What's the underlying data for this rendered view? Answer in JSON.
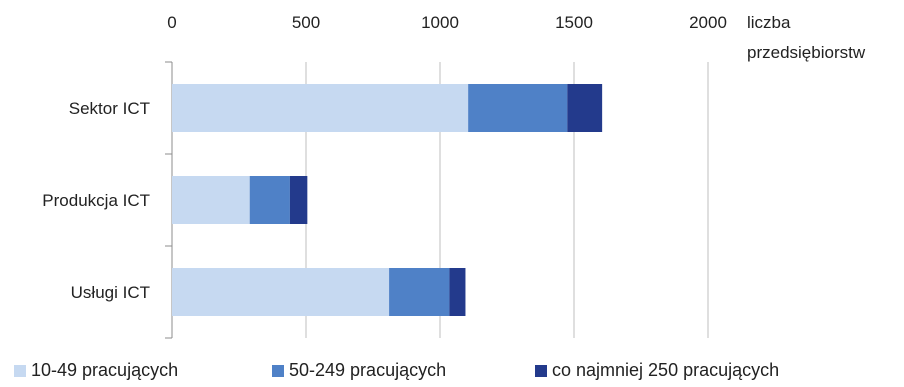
{
  "chart_data": {
    "type": "bar",
    "orientation": "horizontal",
    "stacked": true,
    "categories": [
      "Sektor ICT",
      "Produkcja ICT",
      "Usługi ICT"
    ],
    "series": [
      {
        "name": "10-49 pracujących",
        "values": [
          1105,
          290,
          810
        ],
        "color": "#c6d9f1"
      },
      {
        "name": "50-249 pracujących",
        "values": [
          370,
          150,
          225
        ],
        "color": "#4f81c7"
      },
      {
        "name": "co najmniej 250 pracujących",
        "values": [
          130,
          65,
          60
        ],
        "color": "#233a8c"
      }
    ],
    "xlim": [
      0,
      2000
    ],
    "xticks": [
      0,
      500,
      1000,
      1500,
      2000
    ],
    "xticks_labels": [
      "0",
      "500",
      "1000",
      "1500",
      "2000"
    ],
    "x_axis_position": "top",
    "unit_label": [
      "liczba",
      "przedsiębiorstw"
    ],
    "grid": "vertical",
    "legend_position": "bottom"
  }
}
